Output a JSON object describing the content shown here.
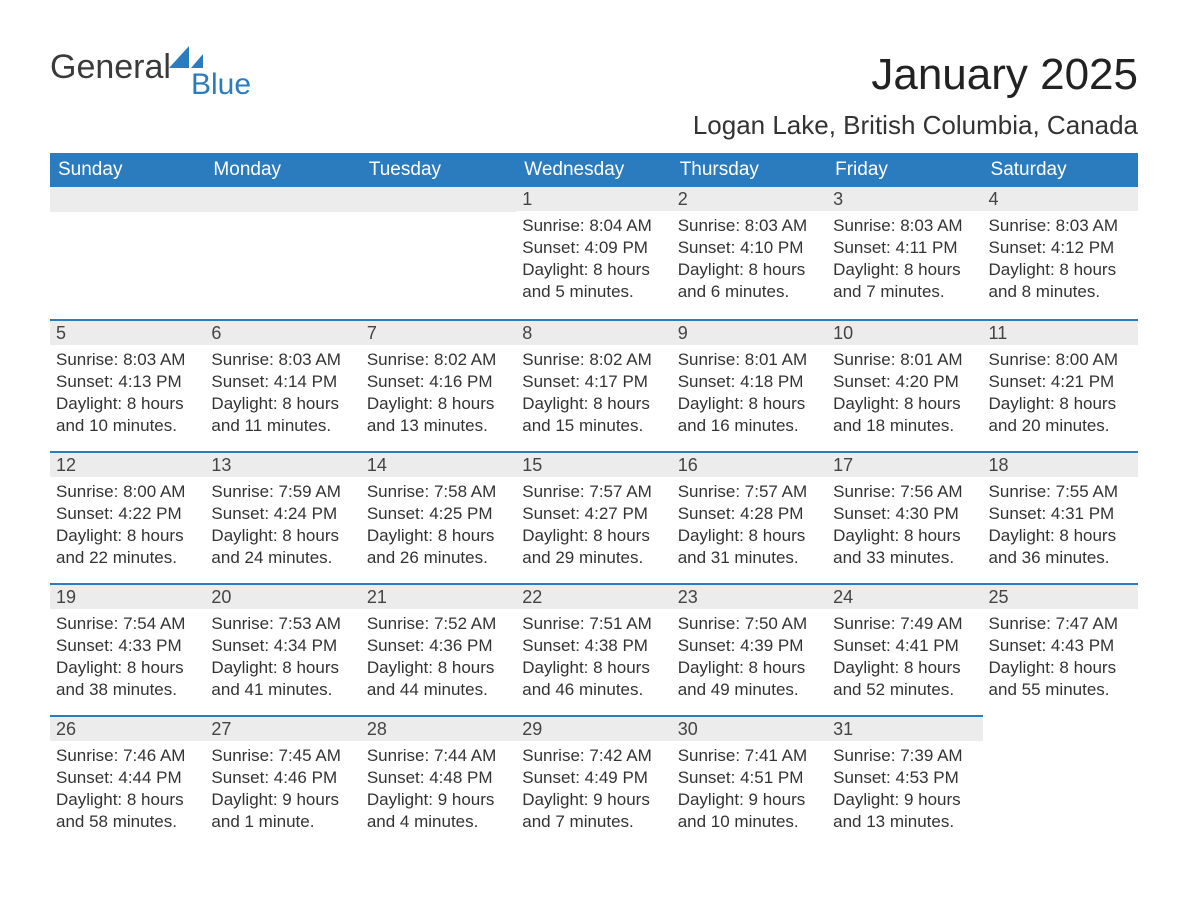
{
  "brand": {
    "word1": "General",
    "word2": "Blue"
  },
  "title": "January 2025",
  "location": "Logan Lake, British Columbia, Canada",
  "colors": {
    "header_bg": "#2b7bbf",
    "header_text": "#ffffff",
    "daynum_bg": "#ececec",
    "row_divider": "#2b7bbf",
    "text": "#333333",
    "page_bg": "#ffffff"
  },
  "weekdays": [
    "Sunday",
    "Monday",
    "Tuesday",
    "Wednesday",
    "Thursday",
    "Friday",
    "Saturday"
  ],
  "weeks": [
    [
      null,
      null,
      null,
      {
        "n": "1",
        "sunrise": "8:04 AM",
        "sunset": "4:09 PM",
        "dl1": "Daylight: 8 hours",
        "dl2": "and 5 minutes."
      },
      {
        "n": "2",
        "sunrise": "8:03 AM",
        "sunset": "4:10 PM",
        "dl1": "Daylight: 8 hours",
        "dl2": "and 6 minutes."
      },
      {
        "n": "3",
        "sunrise": "8:03 AM",
        "sunset": "4:11 PM",
        "dl1": "Daylight: 8 hours",
        "dl2": "and 7 minutes."
      },
      {
        "n": "4",
        "sunrise": "8:03 AM",
        "sunset": "4:12 PM",
        "dl1": "Daylight: 8 hours",
        "dl2": "and 8 minutes."
      }
    ],
    [
      {
        "n": "5",
        "sunrise": "8:03 AM",
        "sunset": "4:13 PM",
        "dl1": "Daylight: 8 hours",
        "dl2": "and 10 minutes."
      },
      {
        "n": "6",
        "sunrise": "8:03 AM",
        "sunset": "4:14 PM",
        "dl1": "Daylight: 8 hours",
        "dl2": "and 11 minutes."
      },
      {
        "n": "7",
        "sunrise": "8:02 AM",
        "sunset": "4:16 PM",
        "dl1": "Daylight: 8 hours",
        "dl2": "and 13 minutes."
      },
      {
        "n": "8",
        "sunrise": "8:02 AM",
        "sunset": "4:17 PM",
        "dl1": "Daylight: 8 hours",
        "dl2": "and 15 minutes."
      },
      {
        "n": "9",
        "sunrise": "8:01 AM",
        "sunset": "4:18 PM",
        "dl1": "Daylight: 8 hours",
        "dl2": "and 16 minutes."
      },
      {
        "n": "10",
        "sunrise": "8:01 AM",
        "sunset": "4:20 PM",
        "dl1": "Daylight: 8 hours",
        "dl2": "and 18 minutes."
      },
      {
        "n": "11",
        "sunrise": "8:00 AM",
        "sunset": "4:21 PM",
        "dl1": "Daylight: 8 hours",
        "dl2": "and 20 minutes."
      }
    ],
    [
      {
        "n": "12",
        "sunrise": "8:00 AM",
        "sunset": "4:22 PM",
        "dl1": "Daylight: 8 hours",
        "dl2": "and 22 minutes."
      },
      {
        "n": "13",
        "sunrise": "7:59 AM",
        "sunset": "4:24 PM",
        "dl1": "Daylight: 8 hours",
        "dl2": "and 24 minutes."
      },
      {
        "n": "14",
        "sunrise": "7:58 AM",
        "sunset": "4:25 PM",
        "dl1": "Daylight: 8 hours",
        "dl2": "and 26 minutes."
      },
      {
        "n": "15",
        "sunrise": "7:57 AM",
        "sunset": "4:27 PM",
        "dl1": "Daylight: 8 hours",
        "dl2": "and 29 minutes."
      },
      {
        "n": "16",
        "sunrise": "7:57 AM",
        "sunset": "4:28 PM",
        "dl1": "Daylight: 8 hours",
        "dl2": "and 31 minutes."
      },
      {
        "n": "17",
        "sunrise": "7:56 AM",
        "sunset": "4:30 PM",
        "dl1": "Daylight: 8 hours",
        "dl2": "and 33 minutes."
      },
      {
        "n": "18",
        "sunrise": "7:55 AM",
        "sunset": "4:31 PM",
        "dl1": "Daylight: 8 hours",
        "dl2": "and 36 minutes."
      }
    ],
    [
      {
        "n": "19",
        "sunrise": "7:54 AM",
        "sunset": "4:33 PM",
        "dl1": "Daylight: 8 hours",
        "dl2": "and 38 minutes."
      },
      {
        "n": "20",
        "sunrise": "7:53 AM",
        "sunset": "4:34 PM",
        "dl1": "Daylight: 8 hours",
        "dl2": "and 41 minutes."
      },
      {
        "n": "21",
        "sunrise": "7:52 AM",
        "sunset": "4:36 PM",
        "dl1": "Daylight: 8 hours",
        "dl2": "and 44 minutes."
      },
      {
        "n": "22",
        "sunrise": "7:51 AM",
        "sunset": "4:38 PM",
        "dl1": "Daylight: 8 hours",
        "dl2": "and 46 minutes."
      },
      {
        "n": "23",
        "sunrise": "7:50 AM",
        "sunset": "4:39 PM",
        "dl1": "Daylight: 8 hours",
        "dl2": "and 49 minutes."
      },
      {
        "n": "24",
        "sunrise": "7:49 AM",
        "sunset": "4:41 PM",
        "dl1": "Daylight: 8 hours",
        "dl2": "and 52 minutes."
      },
      {
        "n": "25",
        "sunrise": "7:47 AM",
        "sunset": "4:43 PM",
        "dl1": "Daylight: 8 hours",
        "dl2": "and 55 minutes."
      }
    ],
    [
      {
        "n": "26",
        "sunrise": "7:46 AM",
        "sunset": "4:44 PM",
        "dl1": "Daylight: 8 hours",
        "dl2": "and 58 minutes."
      },
      {
        "n": "27",
        "sunrise": "7:45 AM",
        "sunset": "4:46 PM",
        "dl1": "Daylight: 9 hours",
        "dl2": "and 1 minute."
      },
      {
        "n": "28",
        "sunrise": "7:44 AM",
        "sunset": "4:48 PM",
        "dl1": "Daylight: 9 hours",
        "dl2": "and 4 minutes."
      },
      {
        "n": "29",
        "sunrise": "7:42 AM",
        "sunset": "4:49 PM",
        "dl1": "Daylight: 9 hours",
        "dl2": "and 7 minutes."
      },
      {
        "n": "30",
        "sunrise": "7:41 AM",
        "sunset": "4:51 PM",
        "dl1": "Daylight: 9 hours",
        "dl2": "and 10 minutes."
      },
      {
        "n": "31",
        "sunrise": "7:39 AM",
        "sunset": "4:53 PM",
        "dl1": "Daylight: 9 hours",
        "dl2": "and 13 minutes."
      },
      null
    ]
  ],
  "labels": {
    "sunrise_prefix": "Sunrise: ",
    "sunset_prefix": "Sunset: "
  }
}
